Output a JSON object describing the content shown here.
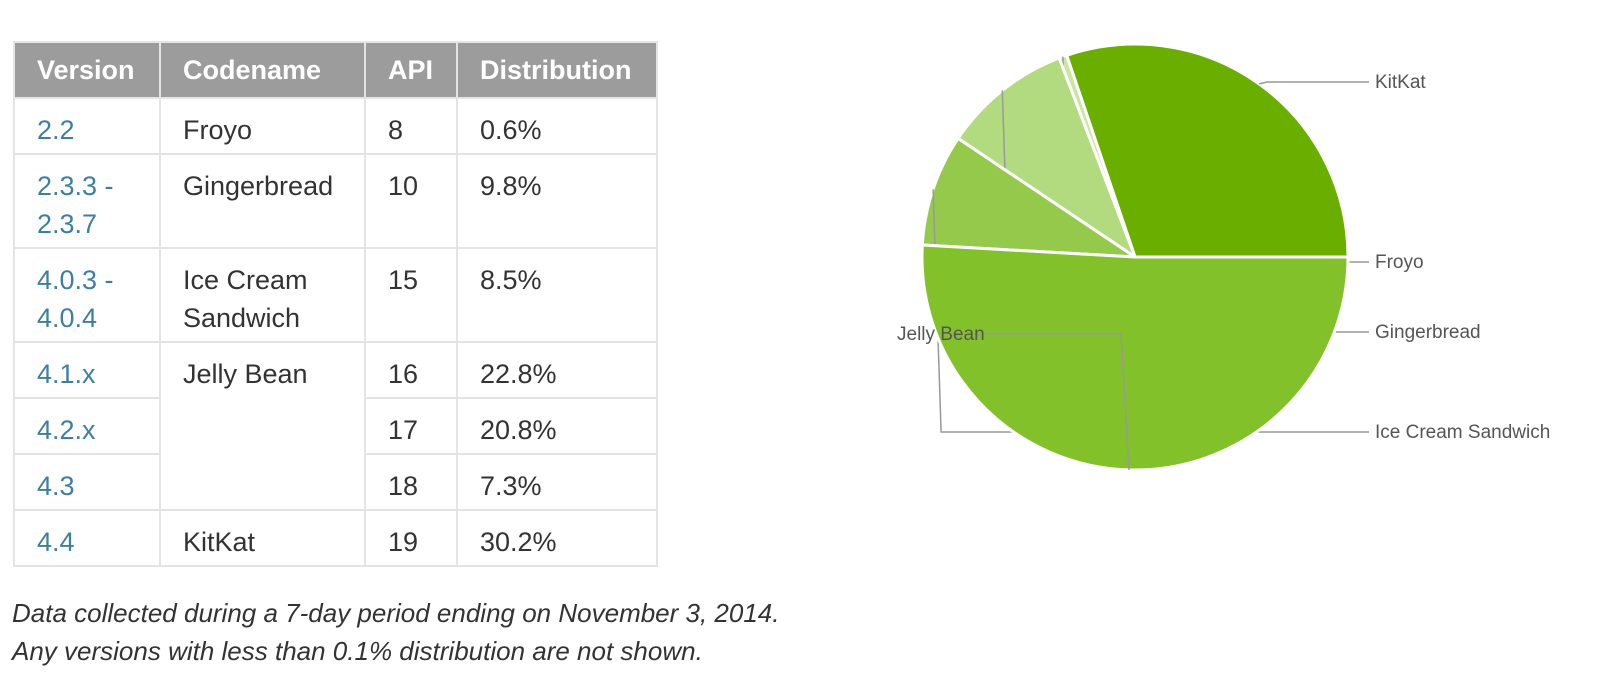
{
  "table": {
    "headers": [
      "Version",
      "Codename",
      "API",
      "Distribution"
    ],
    "rows": [
      {
        "version": "2.2",
        "codename": "Froyo",
        "api": "8",
        "distribution": "0.6%"
      },
      {
        "version": "2.3.3 -\n2.3.7",
        "codename": "Gingerbread",
        "api": "10",
        "distribution": "9.8%"
      },
      {
        "version": "4.0.3 -\n4.0.4",
        "codename": "Ice Cream\nSandwich",
        "api": "15",
        "distribution": "8.5%"
      },
      {
        "version": "4.1.x",
        "codename": "Jelly Bean",
        "api": "16",
        "distribution": "22.8%"
      },
      {
        "version": "4.2.x",
        "codename": "",
        "api": "17",
        "distribution": "20.8%"
      },
      {
        "version": "4.3",
        "codename": "",
        "api": "18",
        "distribution": "7.3%"
      },
      {
        "version": "4.4",
        "codename": "KitKat",
        "api": "19",
        "distribution": "30.2%"
      }
    ]
  },
  "notes": {
    "line1": "Data collected during a 7-day period ending on November 3, 2014.",
    "line2": "Any versions with less than 0.1% distribution are not shown."
  },
  "chart_data": {
    "type": "pie",
    "title": "",
    "slices": [
      {
        "label": "KitKat",
        "value": 30.2,
        "color": "#6aae00"
      },
      {
        "label": "Froyo",
        "value": 0.6,
        "color": "#cbe6a3"
      },
      {
        "label": "Gingerbread",
        "value": 9.8,
        "color": "#b1db7e"
      },
      {
        "label": "Ice Cream Sandwich",
        "value": 8.5,
        "color": "#94c94c"
      },
      {
        "label": "Jelly Bean",
        "value": 50.9,
        "color": "#83c12a"
      }
    ],
    "start": "3 o'clock, counter-clockwise",
    "label_color": "#555555",
    "leader_color": "#999999",
    "slice_border": "#ffffff"
  },
  "colors": {
    "header_bg": "#9c9c9c",
    "header_text": "#ffffff",
    "version_link": "#3c7fa0",
    "cell_border": "#e4e4e4",
    "body_text": "#333333"
  }
}
